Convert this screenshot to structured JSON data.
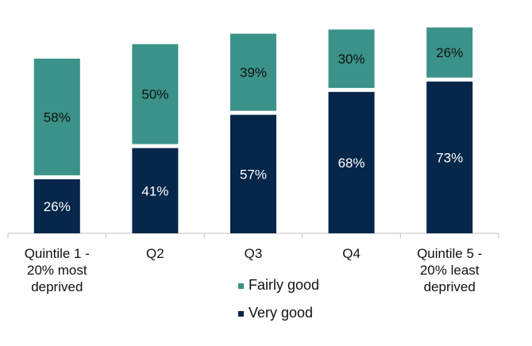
{
  "chart_data": {
    "type": "bar",
    "stacked": true,
    "categories": [
      "Quintile 1 -\n20% most\ndeprived",
      "Q2",
      "Q3",
      "Q4",
      "Quintile 5 -\n20% least\ndeprived"
    ],
    "series": [
      {
        "name": "Very good",
        "color": "#06264a",
        "values": [
          26,
          41,
          57,
          68,
          73
        ],
        "labels": [
          "26%",
          "41%",
          "57%",
          "68%",
          "73%"
        ]
      },
      {
        "name": "Fairly good",
        "color": "#3a9288",
        "values": [
          58,
          50,
          39,
          30,
          26
        ],
        "labels": [
          "58%",
          "50%",
          "39%",
          "30%",
          "26%"
        ]
      }
    ],
    "title": "",
    "xlabel": "",
    "ylabel": "",
    "ylim": [
      0,
      100
    ],
    "grid": false,
    "legend": "bottom-center"
  }
}
